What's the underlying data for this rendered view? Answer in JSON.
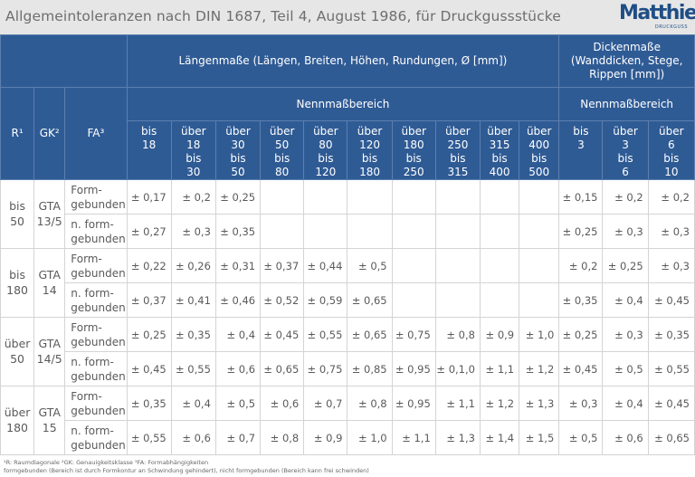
{
  "title": "Allgemeintoleranzen nach DIN 1687, Teil 4, August 1986, für Druckgussstücke",
  "logo": {
    "word": "Matthies",
    "sub": "DRUCKGUSS"
  },
  "header": {
    "laengen": "Längenmaße (Längen, Breiten, Höhen, Rundungen, Ø [mm])",
    "dicken": "Dickenmaße (Wanddicken, Stege, Rippen [mm])",
    "nenn_laengen": "Nennmaßbereich",
    "nenn_dicken": "Nennmaßbereich",
    "r": "R¹",
    "gk": "GK²",
    "fa": "FA³",
    "laengen_ranges": [
      "bis 18",
      "über 18 bis 30",
      "über 30 bis 50",
      "über 50 bis 80",
      "über 80 bis 120",
      "über 120 bis 180",
      "über 180 bis 250",
      "über 250 bis 315",
      "über 315 bis 400",
      "über 400 bis 500"
    ],
    "dicken_ranges": [
      "bis 3",
      "über 3 bis 6",
      "über 6 bis 10"
    ]
  },
  "groups": [
    {
      "r": "bis 50",
      "gk": "GTA 13/5",
      "rows": [
        {
          "fa": "Form-gebunden",
          "len": [
            "± 0,17",
            "± 0,2",
            "± 0,25",
            "",
            "",
            "",
            "",
            "",
            "",
            ""
          ],
          "dick": [
            "± 0,15",
            "± 0,2",
            "± 0,2"
          ]
        },
        {
          "fa": "n. form-gebunden",
          "len": [
            "± 0,27",
            "± 0,3",
            "± 0,35",
            "",
            "",
            "",
            "",
            "",
            "",
            ""
          ],
          "dick": [
            "± 0,25",
            "± 0,3",
            "± 0,3"
          ]
        }
      ]
    },
    {
      "r": "bis 180",
      "gk": "GTA 14",
      "rows": [
        {
          "fa": "Form-gebunden",
          "len": [
            "± 0,22",
            "± 0,26",
            "± 0,31",
            "± 0,37",
            "± 0,44",
            "± 0,5",
            "",
            "",
            "",
            ""
          ],
          "dick": [
            "± 0,2",
            "± 0,25",
            "± 0,3"
          ]
        },
        {
          "fa": "n. form-gebunden",
          "len": [
            "± 0,37",
            "± 0,41",
            "± 0,46",
            "± 0,52",
            "± 0,59",
            "± 0,65",
            "",
            "",
            "",
            ""
          ],
          "dick": [
            "± 0,35",
            "± 0,4",
            "± 0,45"
          ]
        }
      ]
    },
    {
      "r": "über 50",
      "gk": "GTA 14/5",
      "rows": [
        {
          "fa": "Form-gebunden",
          "len": [
            "± 0,25",
            "± 0,35",
            "± 0,4",
            "± 0,45",
            "± 0,55",
            "± 0,65",
            "± 0,75",
            "± 0,8",
            "± 0,9",
            "± 1,0"
          ],
          "dick": [
            "± 0,25",
            "± 0,3",
            "± 0,35"
          ]
        },
        {
          "fa": "n. form-gebunden",
          "len": [
            "± 0,45",
            "± 0,55",
            "± 0,6",
            "± 0,65",
            "± 0,75",
            "± 0,85",
            "± 0,95",
            "± 0,1,0",
            "± 1,1",
            "± 1,2"
          ],
          "dick": [
            "± 0,45",
            "± 0,5",
            "± 0,55"
          ]
        }
      ]
    },
    {
      "r": "über 180",
      "gk": "GTA 15",
      "rows": [
        {
          "fa": "Form-gebunden",
          "len": [
            "± 0,35",
            "± 0,4",
            "± 0,5",
            "± 0,6",
            "± 0,7",
            "± 0,8",
            "± 0,95",
            "± 1,1",
            "± 1,2",
            "± 1,3"
          ],
          "dick": [
            "± 0,3",
            "± 0,4",
            "± 0,45"
          ]
        },
        {
          "fa": "n. form-gebunden",
          "len": [
            "± 0,55",
            "± 0,6",
            "± 0,7",
            "± 0,8",
            "± 0,9",
            "± 1,0",
            "± 1,1",
            "± 1,3",
            "± 1,4",
            "± 1,5"
          ],
          "dick": [
            "± 0,5",
            "± 0,6",
            "± 0,65"
          ]
        }
      ]
    }
  ],
  "footnote1": "¹R: Raumdiagonale  ²GK: Genauigkeitsklasse  ³FA: Formabhängigkeiten",
  "footnote2": "formgebunden (Bereich ist durch Formkontur an Schwindung gehindert), nicht formgebunden (Bereich kann frei schwinden)"
}
